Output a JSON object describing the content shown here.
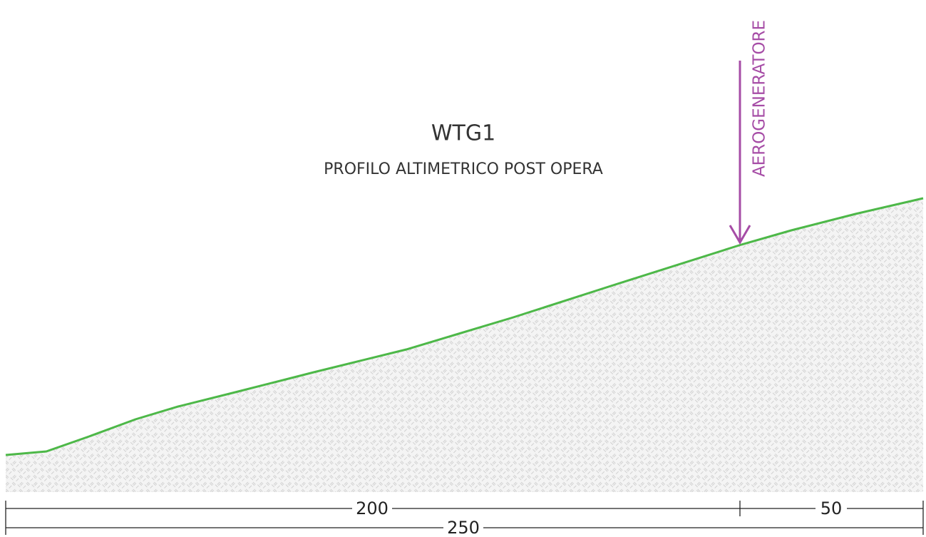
{
  "title": "WTG1",
  "subtitle": "PROFILO ALTIMETRICO POST OPERA",
  "marker": {
    "label": "AEROGENERATORE"
  },
  "dimensions": [
    {
      "label": 200
    },
    {
      "label": 50
    },
    {
      "label": 250
    }
  ]
}
